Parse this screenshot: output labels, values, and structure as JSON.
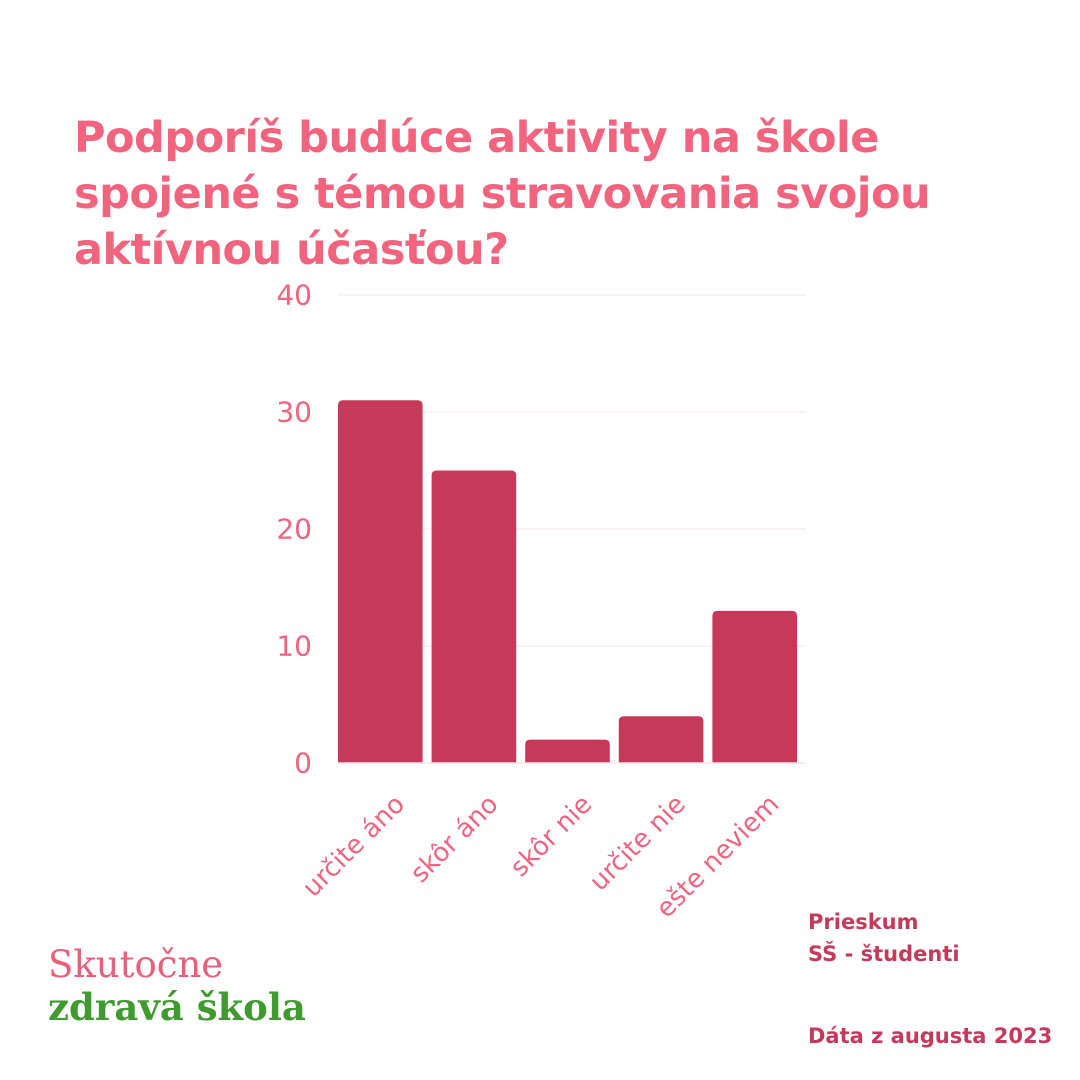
{
  "title_lines": [
    "Podporíš budúce aktivity na škole",
    "spojené s témou stravovania svojou",
    "aktívnou účasťou?"
  ],
  "chart_data": {
    "type": "bar",
    "title": "Podporíš budúce aktivity na škole spojené s témou stravovania svojou aktívnou účasťou?",
    "categories": [
      "určite áno",
      "skôr áno",
      "skôr nie",
      "určite nie",
      "ešte neviem"
    ],
    "values": [
      31,
      25,
      2,
      4,
      13
    ],
    "yticks": [
      0,
      10,
      20,
      30,
      40
    ],
    "ylim": [
      0,
      40
    ],
    "xlabel": "",
    "ylabel": "",
    "grid": true,
    "colors": {
      "bar": "#c7395a",
      "tick": "#f2637e",
      "grid": "#fbe3e8"
    }
  },
  "survey": {
    "line1": "Prieskum",
    "line2": "SŠ - študenti",
    "date": "Dáta z augusta 2023"
  },
  "logo": {
    "line1": "Skutočne",
    "line2": "zdravá škola",
    "colors": {
      "line1": "#e8607a",
      "line2": "#3f9a2f"
    }
  }
}
